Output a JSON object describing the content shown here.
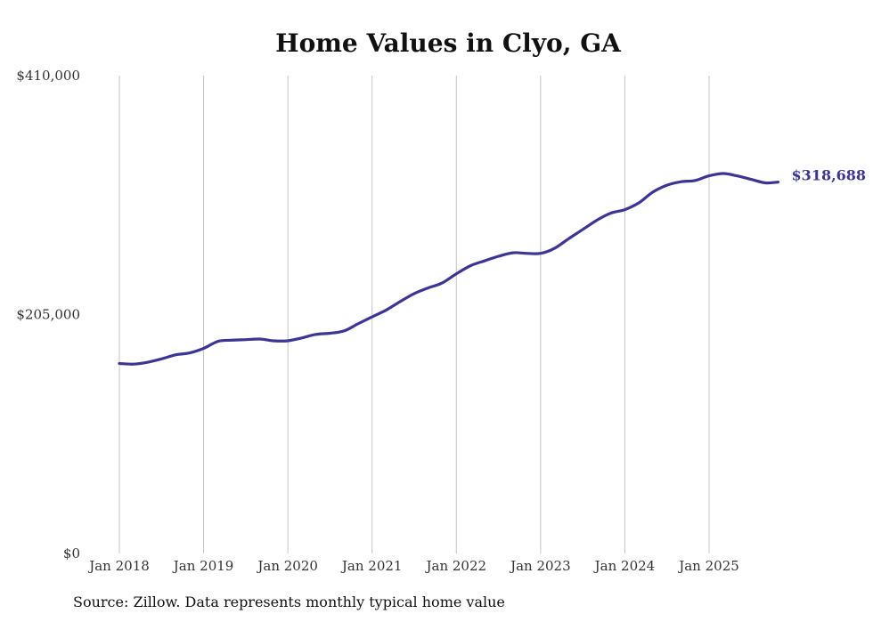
{
  "chart_data": {
    "type": "line",
    "title": "Home Values in Clyo, GA",
    "xlabel": "",
    "ylabel": "",
    "ylim": [
      0,
      410000
    ],
    "y_ticks": [
      {
        "value": 0,
        "label": "$0"
      },
      {
        "value": 205000,
        "label": "$205,000"
      },
      {
        "value": 410000,
        "label": "$410,000"
      }
    ],
    "x_ticks": [
      {
        "value": 2018,
        "label": "Jan 2018"
      },
      {
        "value": 2019,
        "label": "Jan 2019"
      },
      {
        "value": 2020,
        "label": "Jan 2020"
      },
      {
        "value": 2021,
        "label": "Jan 2021"
      },
      {
        "value": 2022,
        "label": "Jan 2022"
      },
      {
        "value": 2023,
        "label": "Jan 2023"
      },
      {
        "value": 2024,
        "label": "Jan 2024"
      },
      {
        "value": 2025,
        "label": "Jan 2025"
      }
    ],
    "xlim": [
      2018,
      2025.82
    ],
    "grid": "vertical",
    "series": [
      {
        "name": "Typical home value",
        "color": "#3d3596",
        "end_label": "$318,688",
        "points": [
          [
            2018.0,
            163000
          ],
          [
            2018.17,
            162500
          ],
          [
            2018.33,
            164000
          ],
          [
            2018.5,
            167000
          ],
          [
            2018.67,
            170500
          ],
          [
            2018.83,
            172000
          ],
          [
            2019.0,
            176000
          ],
          [
            2019.17,
            182000
          ],
          [
            2019.33,
            183000
          ],
          [
            2019.5,
            183500
          ],
          [
            2019.67,
            184000
          ],
          [
            2019.83,
            182500
          ],
          [
            2020.0,
            182500
          ],
          [
            2020.17,
            185000
          ],
          [
            2020.33,
            188000
          ],
          [
            2020.5,
            189000
          ],
          [
            2020.67,
            191000
          ],
          [
            2020.83,
            197000
          ],
          [
            2021.0,
            203000
          ],
          [
            2021.17,
            209000
          ],
          [
            2021.33,
            216000
          ],
          [
            2021.5,
            223000
          ],
          [
            2021.67,
            228000
          ],
          [
            2021.83,
            232000
          ],
          [
            2022.0,
            240000
          ],
          [
            2022.17,
            247000
          ],
          [
            2022.33,
            251000
          ],
          [
            2022.5,
            255000
          ],
          [
            2022.67,
            258000
          ],
          [
            2022.83,
            257500
          ],
          [
            2023.0,
            257500
          ],
          [
            2023.17,
            262000
          ],
          [
            2023.33,
            270000
          ],
          [
            2023.5,
            278000
          ],
          [
            2023.67,
            286000
          ],
          [
            2023.83,
            292000
          ],
          [
            2024.0,
            295000
          ],
          [
            2024.17,
            301000
          ],
          [
            2024.33,
            310000
          ],
          [
            2024.5,
            316000
          ],
          [
            2024.67,
            319000
          ],
          [
            2024.83,
            320000
          ],
          [
            2025.0,
            324000
          ],
          [
            2025.17,
            326000
          ],
          [
            2025.33,
            324000
          ],
          [
            2025.5,
            321000
          ],
          [
            2025.67,
            318000
          ],
          [
            2025.82,
            318688
          ]
        ]
      }
    ]
  },
  "footer": {
    "source": "Source: Zillow. Data represents monthly typical home value"
  }
}
